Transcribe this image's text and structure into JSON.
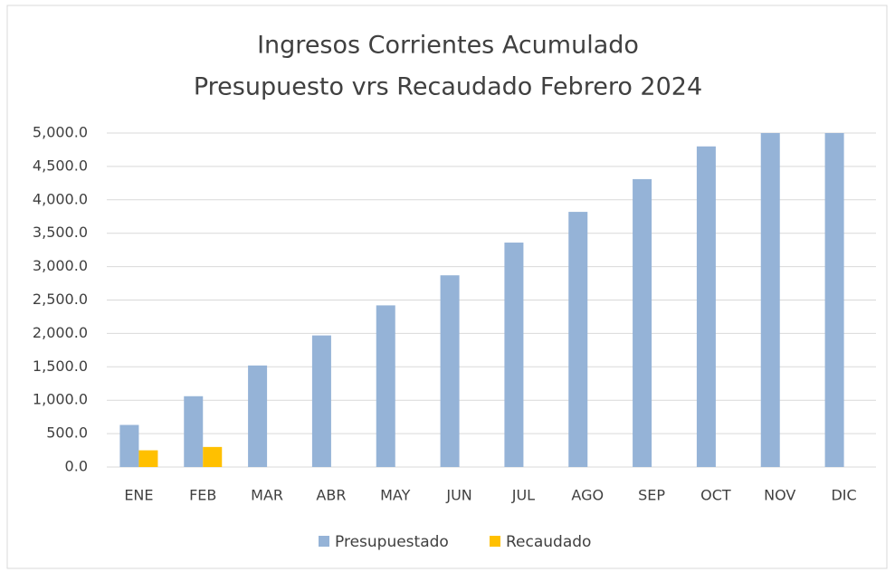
{
  "chart_data": {
    "type": "bar",
    "title": "Ingresos Corrientes Acumulado",
    "subtitle": "Presupuesto vrs Recaudado Febrero 2024",
    "categories": [
      "ENE",
      "FEB",
      "MAR",
      "ABR",
      "MAY",
      "JUN",
      "JUL",
      "AGO",
      "SEP",
      "OCT",
      "NOV",
      "DIC"
    ],
    "series": [
      {
        "name": "Presupuestado",
        "color": "#95b3d7",
        "values": [
          630,
          1060,
          1520,
          1970,
          2420,
          2870,
          3360,
          3820,
          4310,
          4800,
          5000,
          5000
        ]
      },
      {
        "name": "Recaudado",
        "color": "#ffc000",
        "values": [
          250,
          300,
          null,
          null,
          null,
          null,
          null,
          null,
          null,
          null,
          null,
          null
        ]
      }
    ],
    "ylim": [
      0,
      5000
    ],
    "yticks": [
      {
        "value": 0,
        "label": "0.0"
      },
      {
        "value": 500,
        "label": "500.0"
      },
      {
        "value": 1000,
        "label": "1,000.0"
      },
      {
        "value": 1500,
        "label": "1,500.0"
      },
      {
        "value": 2000,
        "label": "2,000.0"
      },
      {
        "value": 2500,
        "label": "2,500.0"
      },
      {
        "value": 3000,
        "label": "3,000.0"
      },
      {
        "value": 3500,
        "label": "3,500.0"
      },
      {
        "value": 4000,
        "label": "4,000.0"
      },
      {
        "value": 4500,
        "label": "4,500.0"
      },
      {
        "value": 5000,
        "label": "5,000.0"
      }
    ],
    "grid": true,
    "legend": "bottom"
  }
}
